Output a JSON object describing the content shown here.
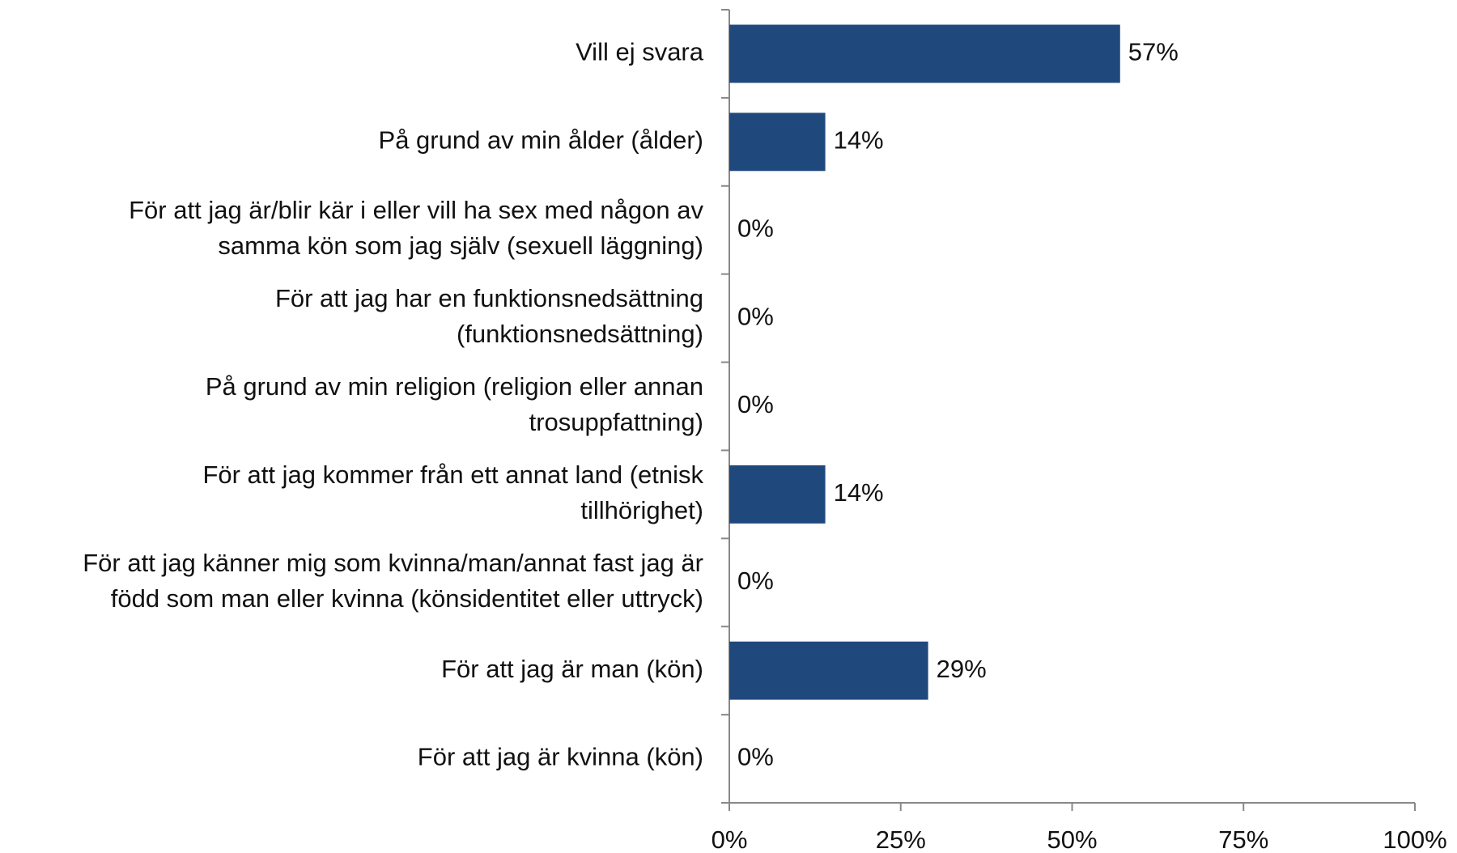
{
  "chart_data": {
    "type": "bar",
    "orientation": "horizontal",
    "categories": [
      "Vill ej svara",
      "På grund av min ålder (ålder)",
      "För att jag är/blir kär i eller vill ha sex med någon av\nsamma kön som jag själv (sexuell läggning)",
      "För att jag har en funktionsnedsättning\n(funktionsnedsättning)",
      "På grund av min religion (religion eller annan\ntrosuppfattning)",
      "För att jag kommer från ett annat land (etnisk\ntillhörighet)",
      "För att jag känner mig som kvinna/man/annat fast jag är\nfödd som man eller kvinna (könsidentitet eller uttryck)",
      "För att jag är man (kön)",
      "För att jag är kvinna (kön)"
    ],
    "values": [
      57,
      14,
      0,
      0,
      0,
      14,
      0,
      29,
      0
    ],
    "value_labels": [
      "57%",
      "14%",
      "0%",
      "0%",
      "0%",
      "14%",
      "0%",
      "29%",
      "0%"
    ],
    "color": "#1f497d",
    "xlim": [
      0,
      100
    ],
    "xticks": [
      {
        "value": 0,
        "label": "0%"
      },
      {
        "value": 25,
        "label": "25%"
      },
      {
        "value": 50,
        "label": "50%"
      },
      {
        "value": 75,
        "label": "75%"
      },
      {
        "value": 100,
        "label": "100%"
      }
    ],
    "grid": false
  }
}
